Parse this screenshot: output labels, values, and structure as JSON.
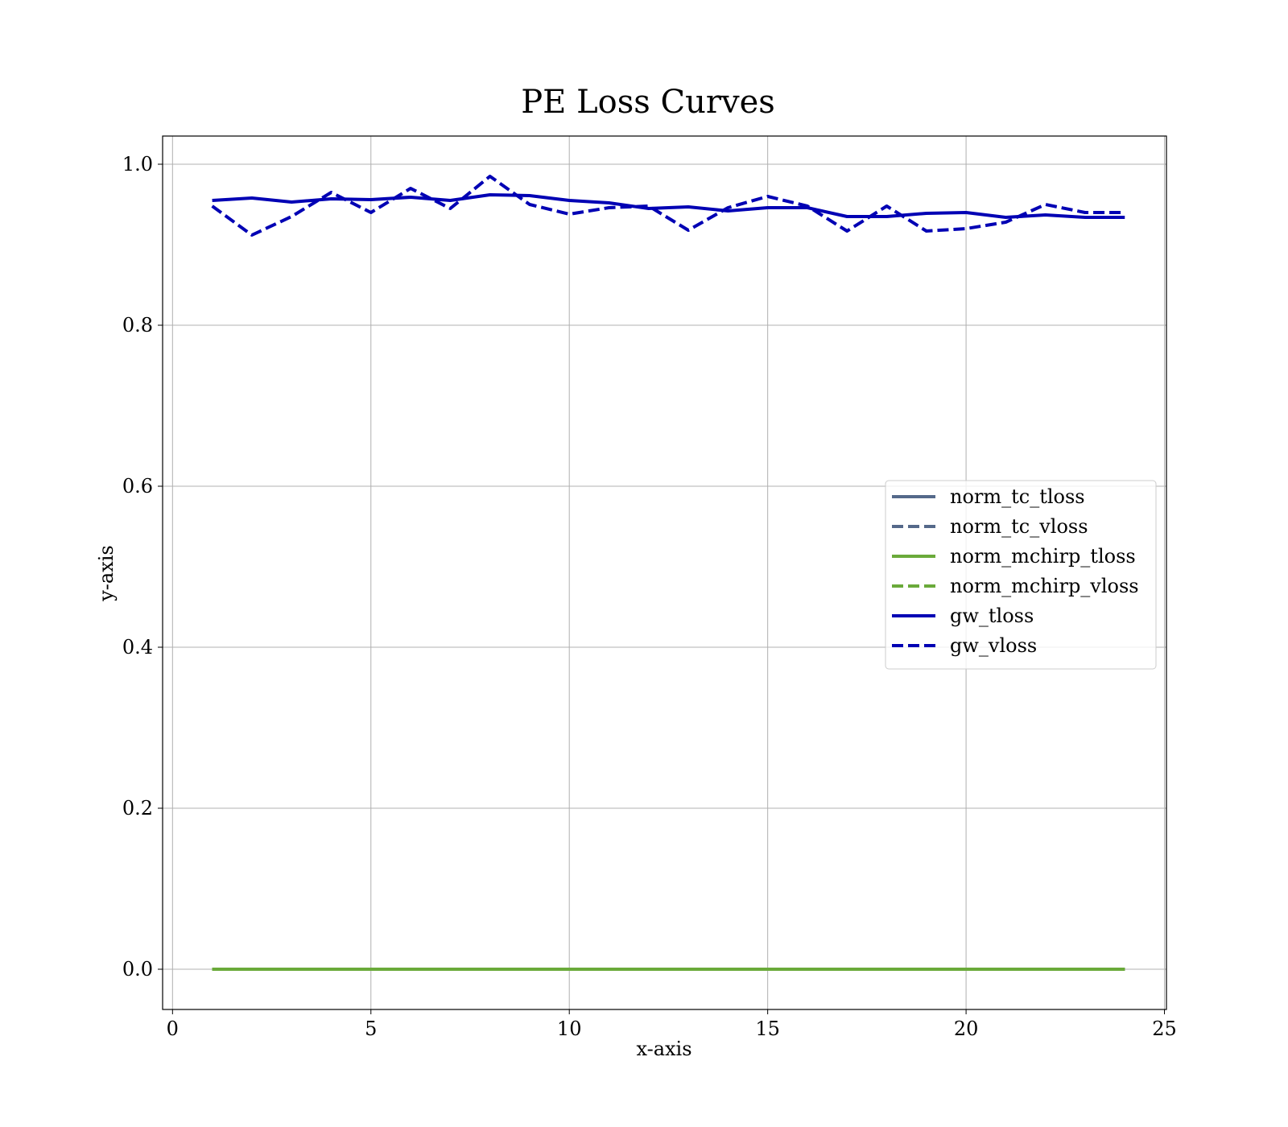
{
  "chart_data": {
    "type": "line",
    "title": "PE Loss Curves",
    "xlabel": "x-axis",
    "ylabel": "y-axis",
    "xlim": [
      -0.25,
      25.05
    ],
    "ylim": [
      -0.05,
      1.035
    ],
    "xticks": [
      0,
      5,
      10,
      15,
      20,
      25
    ],
    "yticks": [
      0.0,
      0.2,
      0.4,
      0.6,
      0.8,
      1.0
    ],
    "xtick_labels": [
      "0",
      "5",
      "10",
      "15",
      "20",
      "25"
    ],
    "ytick_labels": [
      "0.0",
      "0.2",
      "0.4",
      "0.6",
      "0.8",
      "1.0"
    ],
    "grid": true,
    "legend_position": "center-right",
    "x": [
      1,
      2,
      3,
      4,
      5,
      6,
      7,
      8,
      9,
      10,
      11,
      12,
      13,
      14,
      15,
      16,
      17,
      18,
      19,
      20,
      21,
      22,
      23,
      24
    ],
    "series": [
      {
        "name": "norm_tc_tloss",
        "color": "#55698a",
        "dash": "solid",
        "values": [
          0.0,
          0.0,
          0.0,
          0.0,
          0.0,
          0.0,
          0.0,
          0.0,
          0.0,
          0.0,
          0.0,
          0.0,
          0.0,
          0.0,
          0.0,
          0.0,
          0.0,
          0.0,
          0.0,
          0.0,
          0.0,
          0.0,
          0.0,
          0.0
        ]
      },
      {
        "name": "norm_tc_vloss",
        "color": "#55698a",
        "dash": "dashed",
        "values": [
          0.0,
          0.0,
          0.0,
          0.0,
          0.0,
          0.0,
          0.0,
          0.0,
          0.0,
          0.0,
          0.0,
          0.0,
          0.0,
          0.0,
          0.0,
          0.0,
          0.0,
          0.0,
          0.0,
          0.0,
          0.0,
          0.0,
          0.0,
          0.0
        ]
      },
      {
        "name": "norm_mchirp_tloss",
        "color": "#6aaa3a",
        "dash": "solid",
        "values": [
          0.0,
          0.0,
          0.0,
          0.0,
          0.0,
          0.0,
          0.0,
          0.0,
          0.0,
          0.0,
          0.0,
          0.0,
          0.0,
          0.0,
          0.0,
          0.0,
          0.0,
          0.0,
          0.0,
          0.0,
          0.0,
          0.0,
          0.0,
          0.0
        ]
      },
      {
        "name": "norm_mchirp_vloss",
        "color": "#6aaa3a",
        "dash": "dashed",
        "values": [
          0.0,
          0.0,
          0.0,
          0.0,
          0.0,
          0.0,
          0.0,
          0.0,
          0.0,
          0.0,
          0.0,
          0.0,
          0.0,
          0.0,
          0.0,
          0.0,
          0.0,
          0.0,
          0.0,
          0.0,
          0.0,
          0.0,
          0.0,
          0.0
        ]
      },
      {
        "name": "gw_tloss",
        "color": "#0000b4",
        "dash": "solid",
        "values": [
          0.955,
          0.958,
          0.953,
          0.957,
          0.956,
          0.959,
          0.955,
          0.962,
          0.961,
          0.955,
          0.952,
          0.945,
          0.947,
          0.942,
          0.946,
          0.946,
          0.935,
          0.935,
          0.939,
          0.94,
          0.934,
          0.937,
          0.934,
          0.934
        ]
      },
      {
        "name": "gw_vloss",
        "color": "#0000b4",
        "dash": "dashed",
        "values": [
          0.948,
          0.912,
          0.935,
          0.965,
          0.94,
          0.97,
          0.945,
          0.985,
          0.95,
          0.938,
          0.946,
          0.948,
          0.918,
          0.946,
          0.96,
          0.948,
          0.917,
          0.948,
          0.917,
          0.92,
          0.928,
          0.95,
          0.94,
          0.94
        ]
      }
    ]
  }
}
